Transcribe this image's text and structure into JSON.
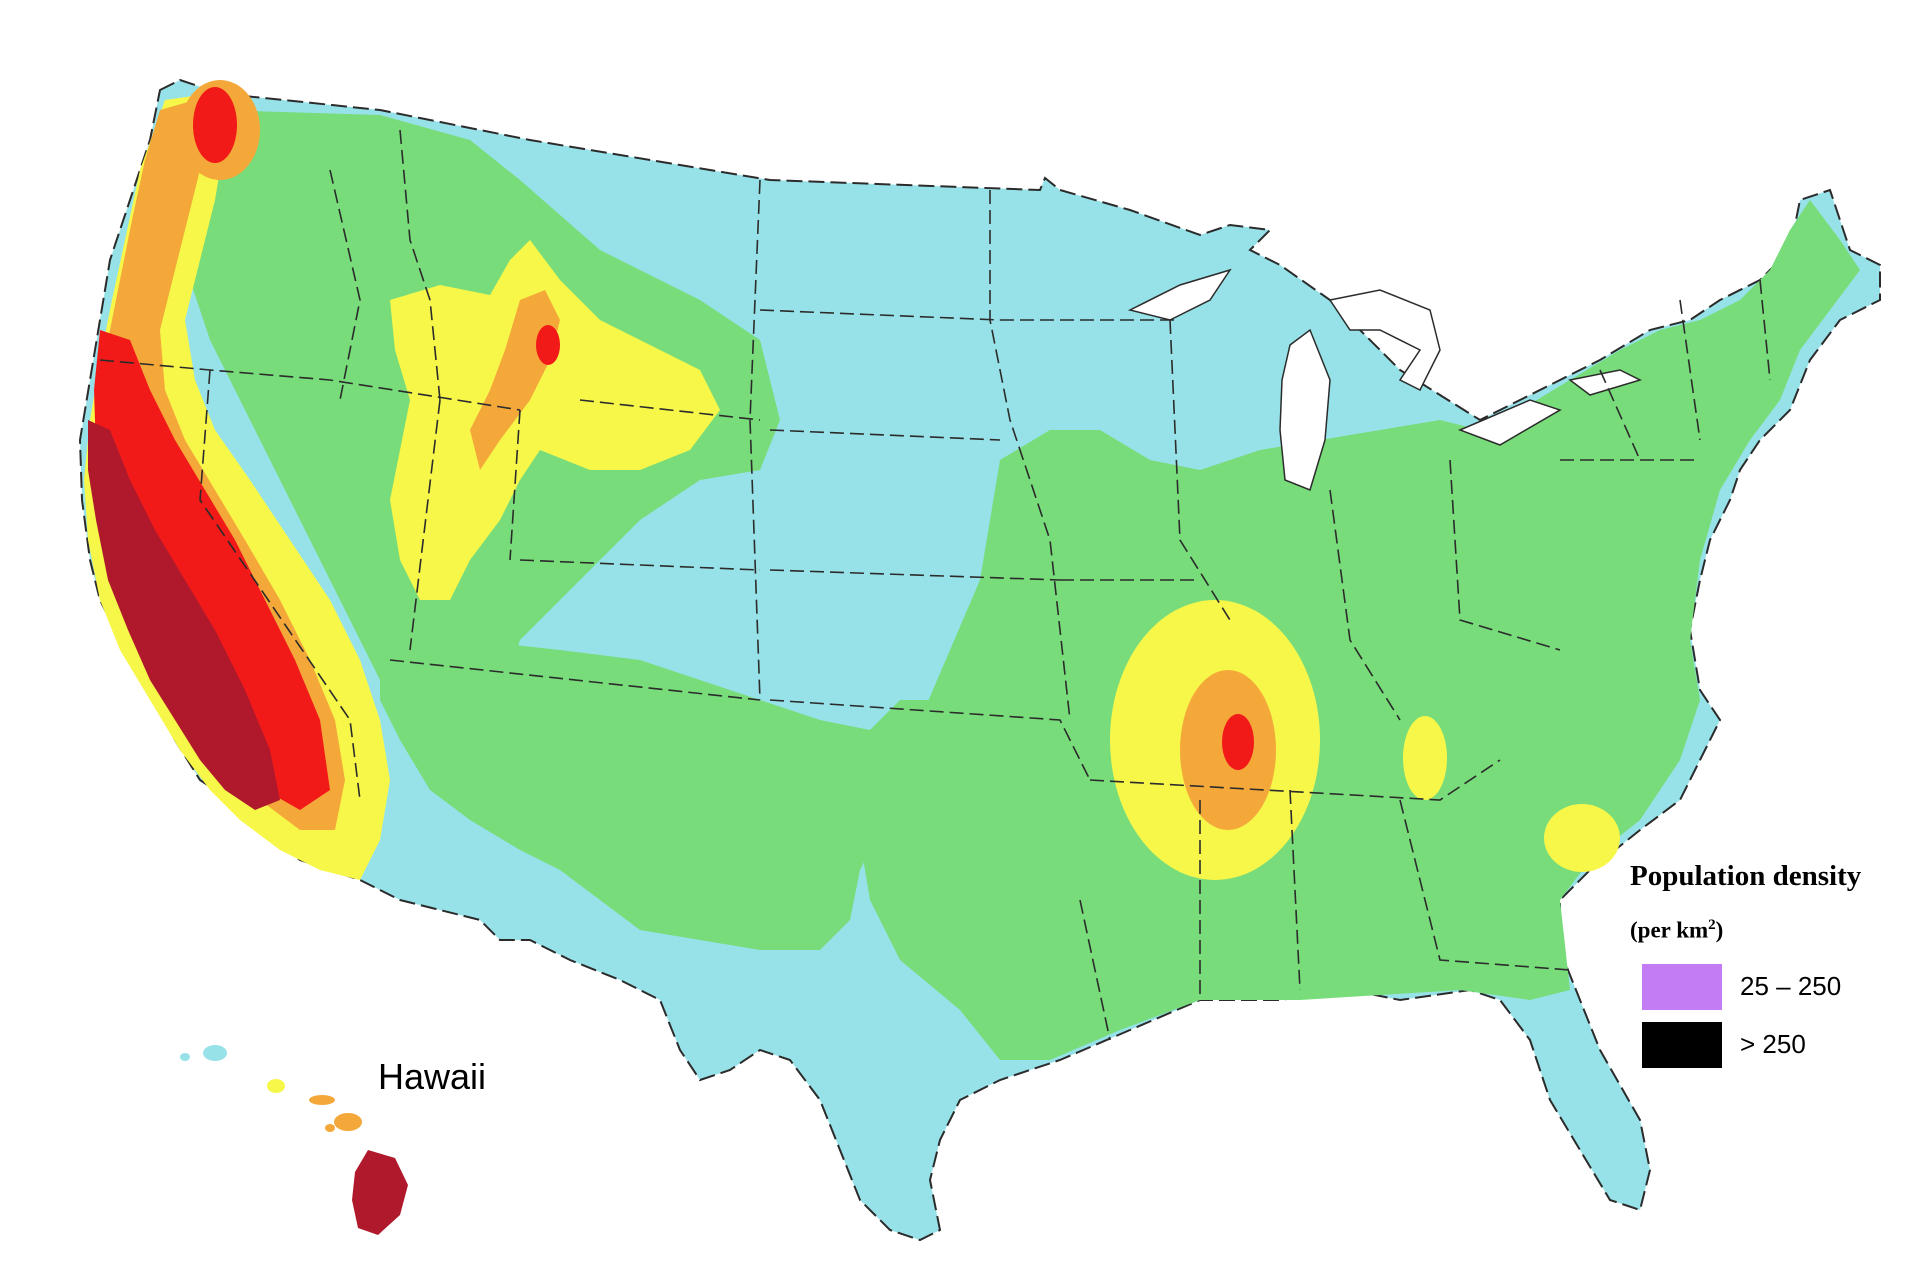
{
  "map": {
    "inset_label": "Hawaii",
    "colors": {
      "background": "#ffffff",
      "lowest": "#97e2e8",
      "low": "#78dc7a",
      "medium": "#f7f74a",
      "high": "#f4a83a",
      "higher": "#f21a18",
      "highest": "#b0192c",
      "boundary": "#2b2b2b"
    }
  },
  "legend": {
    "title": "Population density",
    "unit_prefix": "(per km",
    "unit_power": "2",
    "unit_suffix": ")",
    "items": [
      {
        "label": "25 – 250",
        "color": "#c47cf4",
        "icon": "purple-swatch"
      },
      {
        "label": "> 250",
        "color": "#000000",
        "icon": "black-swatch"
      }
    ]
  }
}
